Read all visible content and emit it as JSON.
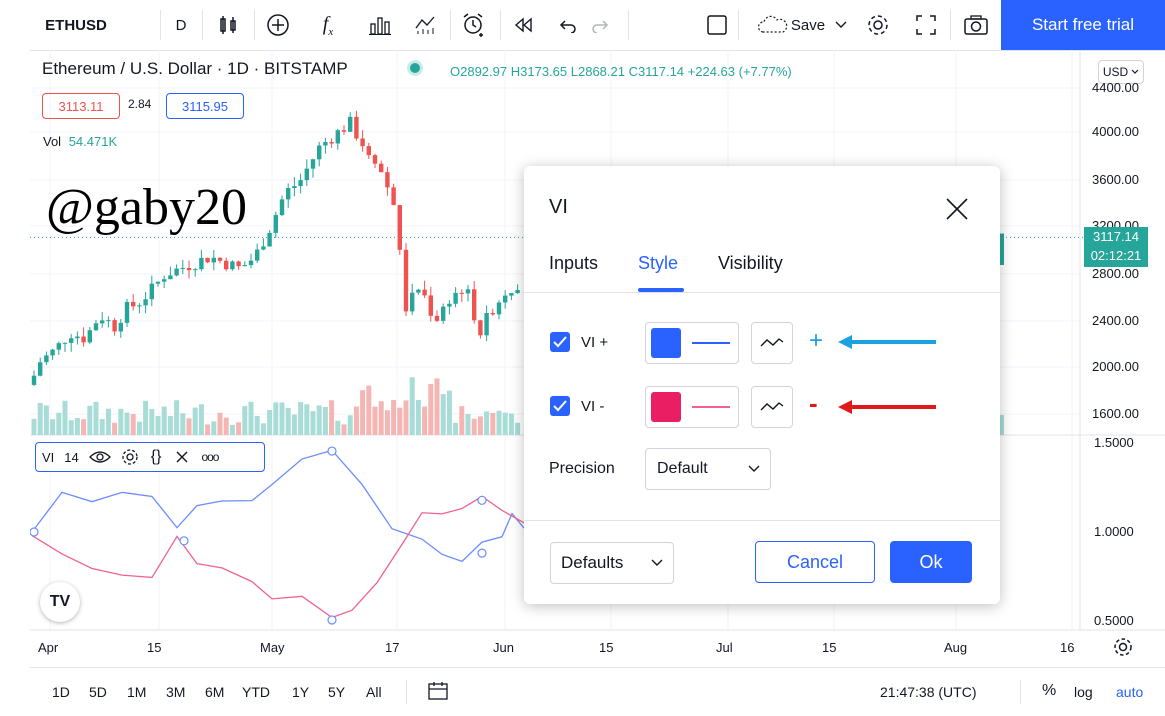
{
  "toolbar": {
    "symbol": "ETHUSD",
    "interval": "D",
    "fx_label": "f",
    "fx_sub": "x",
    "save_label": "Save",
    "trial_label": "Start free trial"
  },
  "chart": {
    "title": "Ethereum / U.S. Dollar · 1D · BITSTAMP",
    "open": "O2892.97",
    "high": "H3173.65",
    "low": "L2868.21",
    "close": "C3117.14",
    "change": "+224.63 (+7.77%)",
    "bid": "3113.11",
    "spread": "2.84",
    "ask": "3115.95",
    "vol_label": "Vol",
    "vol_value": "54.471K",
    "watermark": "@gaby20",
    "currency": "USD",
    "price_axis": [
      "4400.00",
      "4000.00",
      "3600.00",
      "3200.00",
      "2800.00",
      "2400.00",
      "2000.00",
      "1600.00"
    ],
    "last_price": "3117.14",
    "countdown": "02:12:21",
    "indicator_axis": [
      "1.5000",
      "1.0000",
      "0.5000"
    ],
    "x_axis": [
      "Apr",
      "15",
      "May",
      "17",
      "Jun",
      "15",
      "Jul",
      "15",
      "Aug",
      "16"
    ],
    "indicator_name": "VI",
    "indicator_length": "14",
    "tv_logo": "TV",
    "colors": {
      "up": "#26a69a",
      "down": "#ef5350",
      "vi_plus": "#2962ff",
      "vi_minus": "#e91e63",
      "accent": "#2962ff"
    }
  },
  "bottom": {
    "ranges": [
      "1D",
      "5D",
      "1M",
      "3M",
      "6M",
      "YTD",
      "1Y",
      "5Y",
      "All"
    ],
    "time": "21:47:38 (UTC)",
    "percent": "%",
    "log": "log",
    "auto": "auto"
  },
  "dialog": {
    "title": "VI",
    "tabs": [
      "Inputs",
      "Style",
      "Visibility"
    ],
    "active_tab": "Style",
    "vi_plus_label": "VI +",
    "vi_minus_label": "VI -",
    "precision_label": "Precision",
    "precision_value": "Default",
    "defaults_label": "Defaults",
    "cancel_label": "Cancel",
    "ok_label": "Ok"
  },
  "annotations": {
    "plus_sign": "+",
    "minus_sign": "-",
    "plus_color": "#1aa3e0",
    "minus_color": "#e01a1a"
  }
}
